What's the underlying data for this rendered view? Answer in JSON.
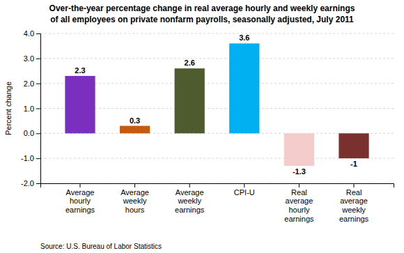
{
  "chart_data": {
    "type": "bar",
    "title": "Over-the-year percentage change in real average hourly and weekly earnings",
    "subtitle": "of all employees on private nonfarm payrolls, seasonally adjusted, July 2011",
    "categories": [
      "Average\nhourly\nearnings",
      "Average\nweekly\nhours",
      "Average\nweekly\nearnings",
      "CPI-U",
      "Real\naverage\nhourly\nearnings",
      "Real\naverage\nweekly\nearnings"
    ],
    "values": [
      2.3,
      0.3,
      2.6,
      3.6,
      -1.3,
      -1.0
    ],
    "colors": [
      "#7B2FBE",
      "#C55A11",
      "#4E5B2E",
      "#00B0F0",
      "#F4CCCC",
      "#7B3030"
    ],
    "y_label": "Percent change",
    "ylim": [
      -2.0,
      4.0
    ],
    "yticks": [
      {
        "value": -2.0,
        "label": "-2.0"
      },
      {
        "value": -1.0,
        "label": "-1.0"
      },
      {
        "value": 0.0,
        "label": "0.0"
      },
      {
        "value": 1.0,
        "label": "1.0"
      },
      {
        "value": 2.0,
        "label": "2.0"
      },
      {
        "value": 3.0,
        "label": "3.0"
      },
      {
        "value": 4.0,
        "label": "4.0"
      }
    ],
    "grid": true,
    "data_labels": true,
    "source": "Source: U.S. Bureau of Labor Statistics"
  }
}
